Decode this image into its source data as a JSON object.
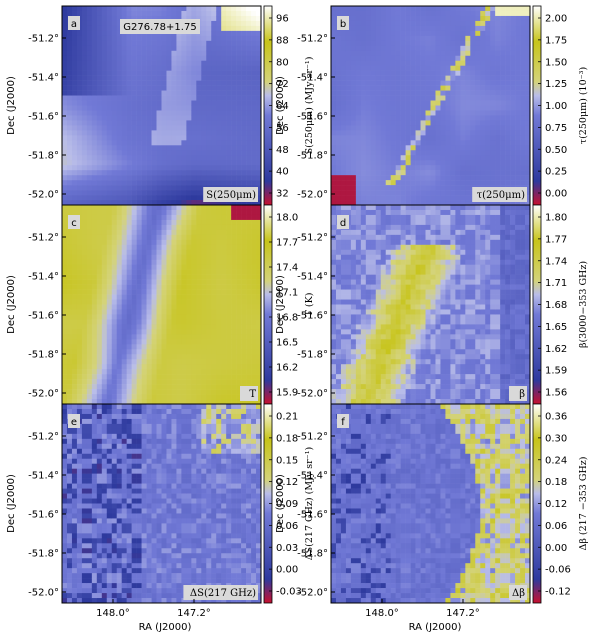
{
  "figure": {
    "title": "G276.78+1.75",
    "xlabel": "RA (J2000)",
    "ylabel": "Dec (J2000)",
    "x_ticks": [
      "148.0°",
      "147.2°"
    ],
    "y_ticks": [
      "-51.2°",
      "-51.4°",
      "-51.6°",
      "-51.8°",
      "-52.0°"
    ]
  },
  "chart_data": [
    {
      "type": "heatmap",
      "panel": "a",
      "map_label": "S(250μm)",
      "title": "G276.78+1.75",
      "colorbar_label": "S(250μm) (MJy sr⁻¹)",
      "colorbar_ticks": [
        "96",
        "88",
        "80",
        "72",
        "64",
        "56",
        "48",
        "40",
        "32"
      ],
      "range": [
        27,
        100
      ]
    },
    {
      "type": "heatmap",
      "panel": "b",
      "map_label": "τ(250μm)",
      "colorbar_label": "τ(250μm) (10⁻³)",
      "colorbar_ticks": [
        "2.00",
        "1.75",
        "1.50",
        "1.25",
        "1.00",
        "0.75",
        "0.50",
        "0.25",
        "0.00"
      ],
      "range": [
        -0.15,
        2.0
      ]
    },
    {
      "type": "heatmap",
      "panel": "c",
      "map_label": "T",
      "colorbar_label": "T (K)",
      "colorbar_ticks": [
        "18.0",
        "17.7",
        "17.4",
        "17.1",
        "16.8",
        "16.5",
        "16.2",
        "15.9"
      ],
      "range": [
        15.7,
        18.2
      ]
    },
    {
      "type": "heatmap",
      "panel": "d",
      "map_label": "β",
      "colorbar_label": "β(3000−353 GHz)",
      "colorbar_ticks": [
        "1.80",
        "1.77",
        "1.74",
        "1.71",
        "1.68",
        "1.65",
        "1.62",
        "1.59",
        "1.56"
      ],
      "range": [
        1.545,
        1.81
      ]
    },
    {
      "type": "heatmap",
      "panel": "e",
      "map_label": "ΔS(217 GHz)",
      "colorbar_label": "ΔS(217 GHz) (MJy sr⁻¹)",
      "colorbar_ticks": [
        "0.21",
        "0.18",
        "0.15",
        "0.12",
        "0.09",
        "0.06",
        "0.03",
        "0.00",
        "-0.03"
      ],
      "range": [
        -0.05,
        0.23
      ]
    },
    {
      "type": "heatmap",
      "panel": "f",
      "map_label": "Δβ",
      "colorbar_label": "Δβ (217 −353 GHz)",
      "colorbar_ticks": [
        "0.36",
        "0.30",
        "0.24",
        "0.18",
        "0.12",
        "0.06",
        "0.00",
        "-0.06",
        "-0.12"
      ],
      "range": [
        -0.13,
        0.39
      ]
    }
  ],
  "colors": {
    "low": "#c8102e",
    "mid": "#4a55c8",
    "mid_light": "#b9bde9",
    "high": "#c7c41a",
    "top": "#ffffff"
  }
}
